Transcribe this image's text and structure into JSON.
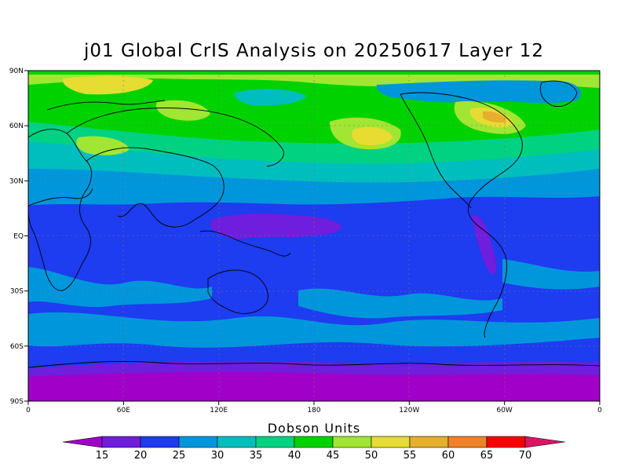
{
  "title": "j01 Global CrIS Analysis on 20250617 Layer 12",
  "lat_ticks": [
    "90N",
    "60N",
    "30N",
    "EQ",
    "30S",
    "60S",
    "90S"
  ],
  "lon_ticks": [
    "0",
    "60E",
    "120E",
    "180",
    "120W",
    "60W",
    "0"
  ],
  "colorbar": {
    "title": "Dobson Units",
    "labels": [
      "15",
      "20",
      "25",
      "30",
      "35",
      "40",
      "45",
      "50",
      "55",
      "60",
      "65",
      "70"
    ],
    "colors": [
      "#a000c8",
      "#6e1edc",
      "#1e3cf0",
      "#0096dc",
      "#00bebe",
      "#00d282",
      "#00d200",
      "#a0e632",
      "#e6dc32",
      "#e6af2d",
      "#f08228",
      "#fa0000",
      "#dc1464"
    ]
  },
  "map": {
    "background_color": "#1e3cf0",
    "grid": true
  }
}
